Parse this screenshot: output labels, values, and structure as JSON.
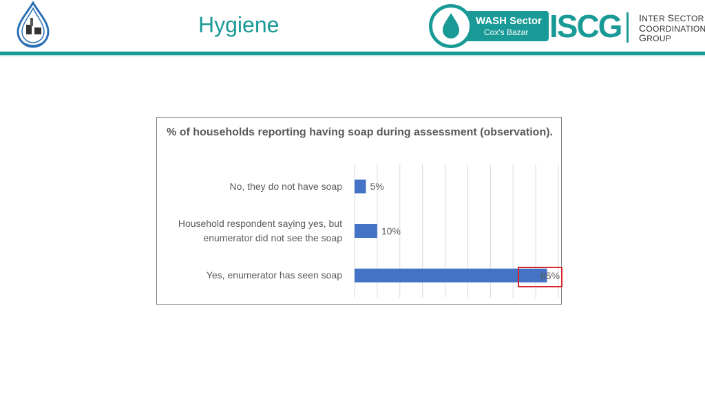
{
  "header": {
    "title": "Hygiene",
    "wash_logo_line1": "WASH Sector",
    "wash_logo_line2": "Cox's Bazar",
    "iscg_logo": "ISCG",
    "iscg_line1_cap": "I",
    "iscg_line1_rest": "NTER ",
    "iscg_line1_cap2": "S",
    "iscg_line1_rest2": "ECTOR",
    "iscg_line2_cap": "C",
    "iscg_line2_rest": "OORDINATION",
    "iscg_line3_cap": "G",
    "iscg_line3_rest": "ROUP",
    "accent_color": "#1a9a96"
  },
  "chart_data": {
    "type": "bar",
    "orientation": "horizontal",
    "title": "% of households reporting having soap during assessment (observation).",
    "categories": [
      "No, they do not have soap",
      "Household respondent saying yes, but enumerator did not see the soap",
      "Yes, enumerator has seen soap"
    ],
    "values": [
      5,
      10,
      85
    ],
    "data_labels": [
      "5%",
      "10%",
      "85%"
    ],
    "xlim": [
      0,
      90
    ],
    "grid": true,
    "bar_color": "#4472c4",
    "highlighted_category": "Yes, enumerator has seen soap",
    "highlight_color": "#d9262e"
  }
}
